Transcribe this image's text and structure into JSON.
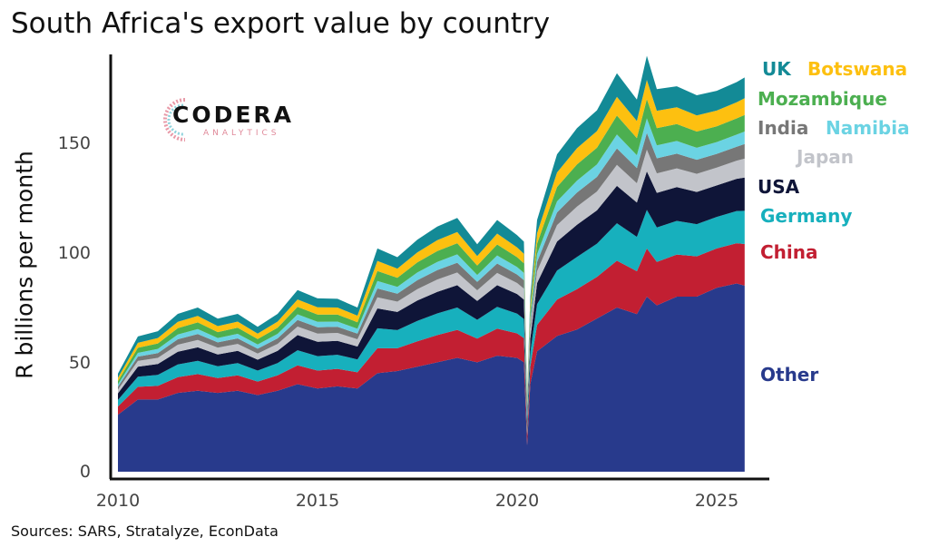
{
  "title": "South Africa's export value by country",
  "source": "Sources: SARS, Stratalyze, EconData",
  "logo": {
    "name": "CODERA",
    "sub": "ANALYTICS"
  },
  "chart_data": {
    "type": "area",
    "stacked": true,
    "title": "South Africa's export value by country",
    "xlabel": "",
    "ylabel": "R billions per month",
    "xlim": [
      2010,
      2025.75
    ],
    "ylim": [
      0,
      190
    ],
    "x_ticks": [
      "2010",
      "2015",
      "2020",
      "2025"
    ],
    "y_ticks": [
      "0",
      "50",
      "100",
      "150"
    ],
    "legend_placement": "right, labels at series positions",
    "x": [
      2010.0,
      2010.5,
      2011.0,
      2011.5,
      2012.0,
      2012.5,
      2013.0,
      2013.5,
      2014.0,
      2014.5,
      2015.0,
      2015.5,
      2016.0,
      2016.5,
      2017.0,
      2017.5,
      2018.0,
      2018.5,
      2019.0,
      2019.5,
      2020.0,
      2020.17,
      2020.25,
      2020.33,
      2020.5,
      2021.0,
      2021.5,
      2022.0,
      2022.5,
      2023.0,
      2023.25,
      2023.5,
      2024.0,
      2024.5,
      2025.0,
      2025.5,
      2025.7
    ],
    "series": [
      {
        "name": "Other",
        "color": "#283a8c",
        "values": [
          26,
          33,
          33,
          36,
          37,
          36,
          37,
          35,
          37,
          40,
          38,
          39,
          38,
          45,
          46,
          48,
          50,
          52,
          50,
          53,
          52,
          50,
          12,
          40,
          55,
          62,
          65,
          70,
          75,
          72,
          80,
          76,
          80,
          80,
          84,
          86,
          85
        ]
      },
      {
        "name": "China",
        "color": "#c21f32",
        "values": [
          3.8,
          5.8,
          6.2,
          7.2,
          7.6,
          6.8,
          7,
          6.2,
          7,
          8.6,
          8.2,
          8,
          7.4,
          11.4,
          10.4,
          11.6,
          12.4,
          12.8,
          10.8,
          12.4,
          11.2,
          11,
          4.6,
          8,
          12,
          16.6,
          18.4,
          19,
          21.4,
          19.6,
          22,
          19.8,
          19.2,
          18.4,
          18,
          18.4,
          19
        ]
      },
      {
        "name": "Germany",
        "color": "#17b0bd",
        "values": [
          3.0,
          4.6,
          5.0,
          5.8,
          6.1,
          5.4,
          5.6,
          5.0,
          5.6,
          6.9,
          6.6,
          6.4,
          5.9,
          9.1,
          8.3,
          9.3,
          9.9,
          10.2,
          8.6,
          9.9,
          9.0,
          8.8,
          3.7,
          6.4,
          9.6,
          13.3,
          14.7,
          15.2,
          17.1,
          15.7,
          17.6,
          15.8,
          15.4,
          14.7,
          14.4,
          14.7,
          15.2
        ]
      },
      {
        "name": "USA",
        "color": "#0f1538",
        "values": [
          3.0,
          4.6,
          5.0,
          5.8,
          6.1,
          5.4,
          5.6,
          5.0,
          5.6,
          6.9,
          6.6,
          6.4,
          5.9,
          9.1,
          8.3,
          9.3,
          9.9,
          10.2,
          8.6,
          9.9,
          9.0,
          8.8,
          3.7,
          6.4,
          9.6,
          13.3,
          14.7,
          15.2,
          17.1,
          15.7,
          17.6,
          15.8,
          15.4,
          14.7,
          14.4,
          14.7,
          15.2
        ]
      },
      {
        "name": "Japan",
        "color": "#c2c4ca",
        "values": [
          1.7,
          2.6,
          2.8,
          3.2,
          3.4,
          3.1,
          3.2,
          2.8,
          3.2,
          3.9,
          3.7,
          3.6,
          3.3,
          5.1,
          4.7,
          5.2,
          5.6,
          5.8,
          4.9,
          5.6,
          5.0,
          5.0,
          2.1,
          3.6,
          5.4,
          7.5,
          8.3,
          8.6,
          9.6,
          8.8,
          9.9,
          8.9,
          8.6,
          8.3,
          8.1,
          8.3,
          8.6
        ]
      },
      {
        "name": "India",
        "color": "#777777",
        "values": [
          1.3,
          2.0,
          2.2,
          2.5,
          2.7,
          2.4,
          2.5,
          2.2,
          2.5,
          3.0,
          2.9,
          2.8,
          2.6,
          4.0,
          3.6,
          4.1,
          4.3,
          4.5,
          3.8,
          4.3,
          3.9,
          3.9,
          1.6,
          2.8,
          4.2,
          5.8,
          6.4,
          6.7,
          7.5,
          6.9,
          7.7,
          6.9,
          6.7,
          6.4,
          6.3,
          6.4,
          6.7
        ]
      },
      {
        "name": "Namibia",
        "color": "#6bd3e3",
        "values": [
          1.1,
          1.7,
          1.9,
          2.2,
          2.3,
          2.0,
          2.1,
          1.9,
          2.1,
          2.6,
          2.5,
          2.4,
          2.2,
          3.4,
          3.1,
          3.5,
          3.7,
          3.8,
          3.2,
          3.7,
          3.4,
          3.3,
          1.4,
          2.4,
          3.6,
          5.0,
          5.5,
          5.7,
          6.4,
          5.9,
          6.6,
          5.9,
          5.8,
          5.5,
          5.4,
          5.5,
          5.7
        ]
      },
      {
        "name": "Mozambique",
        "color": "#4caf50",
        "values": [
          1.5,
          2.3,
          2.5,
          2.9,
          3.0,
          2.7,
          2.8,
          2.5,
          2.8,
          3.4,
          3.3,
          3.2,
          3.0,
          4.6,
          4.2,
          4.6,
          5.0,
          5.1,
          4.3,
          5.0,
          4.5,
          4.4,
          1.8,
          3.2,
          4.8,
          6.6,
          7.4,
          7.6,
          8.6,
          7.8,
          8.8,
          7.9,
          7.7,
          7.4,
          7.2,
          7.4,
          7.6
        ]
      },
      {
        "name": "Botswana",
        "color": "#fdc010",
        "values": [
          1.5,
          2.3,
          2.5,
          2.9,
          3.0,
          2.7,
          2.8,
          2.5,
          2.8,
          3.4,
          3.3,
          3.2,
          3.0,
          4.6,
          4.2,
          4.6,
          5.0,
          5.1,
          4.3,
          5.0,
          4.5,
          4.4,
          1.8,
          3.2,
          4.8,
          6.6,
          7.4,
          7.6,
          8.6,
          7.8,
          8.8,
          7.9,
          7.7,
          7.4,
          7.2,
          7.4,
          7.6
        ]
      },
      {
        "name": "UK",
        "color": "#138a96",
        "values": [
          1.9,
          2.9,
          3.1,
          3.6,
          3.8,
          3.4,
          3.5,
          3.1,
          3.5,
          4.3,
          4.1,
          4.0,
          3.7,
          5.7,
          5.2,
          5.8,
          6.2,
          6.4,
          5.4,
          6.2,
          5.6,
          5.5,
          2.3,
          4.0,
          6.0,
          8.3,
          9.2,
          9.5,
          10.7,
          9.8,
          11.0,
          9.9,
          9.6,
          9.2,
          9.0,
          9.2,
          9.5
        ]
      }
    ]
  }
}
